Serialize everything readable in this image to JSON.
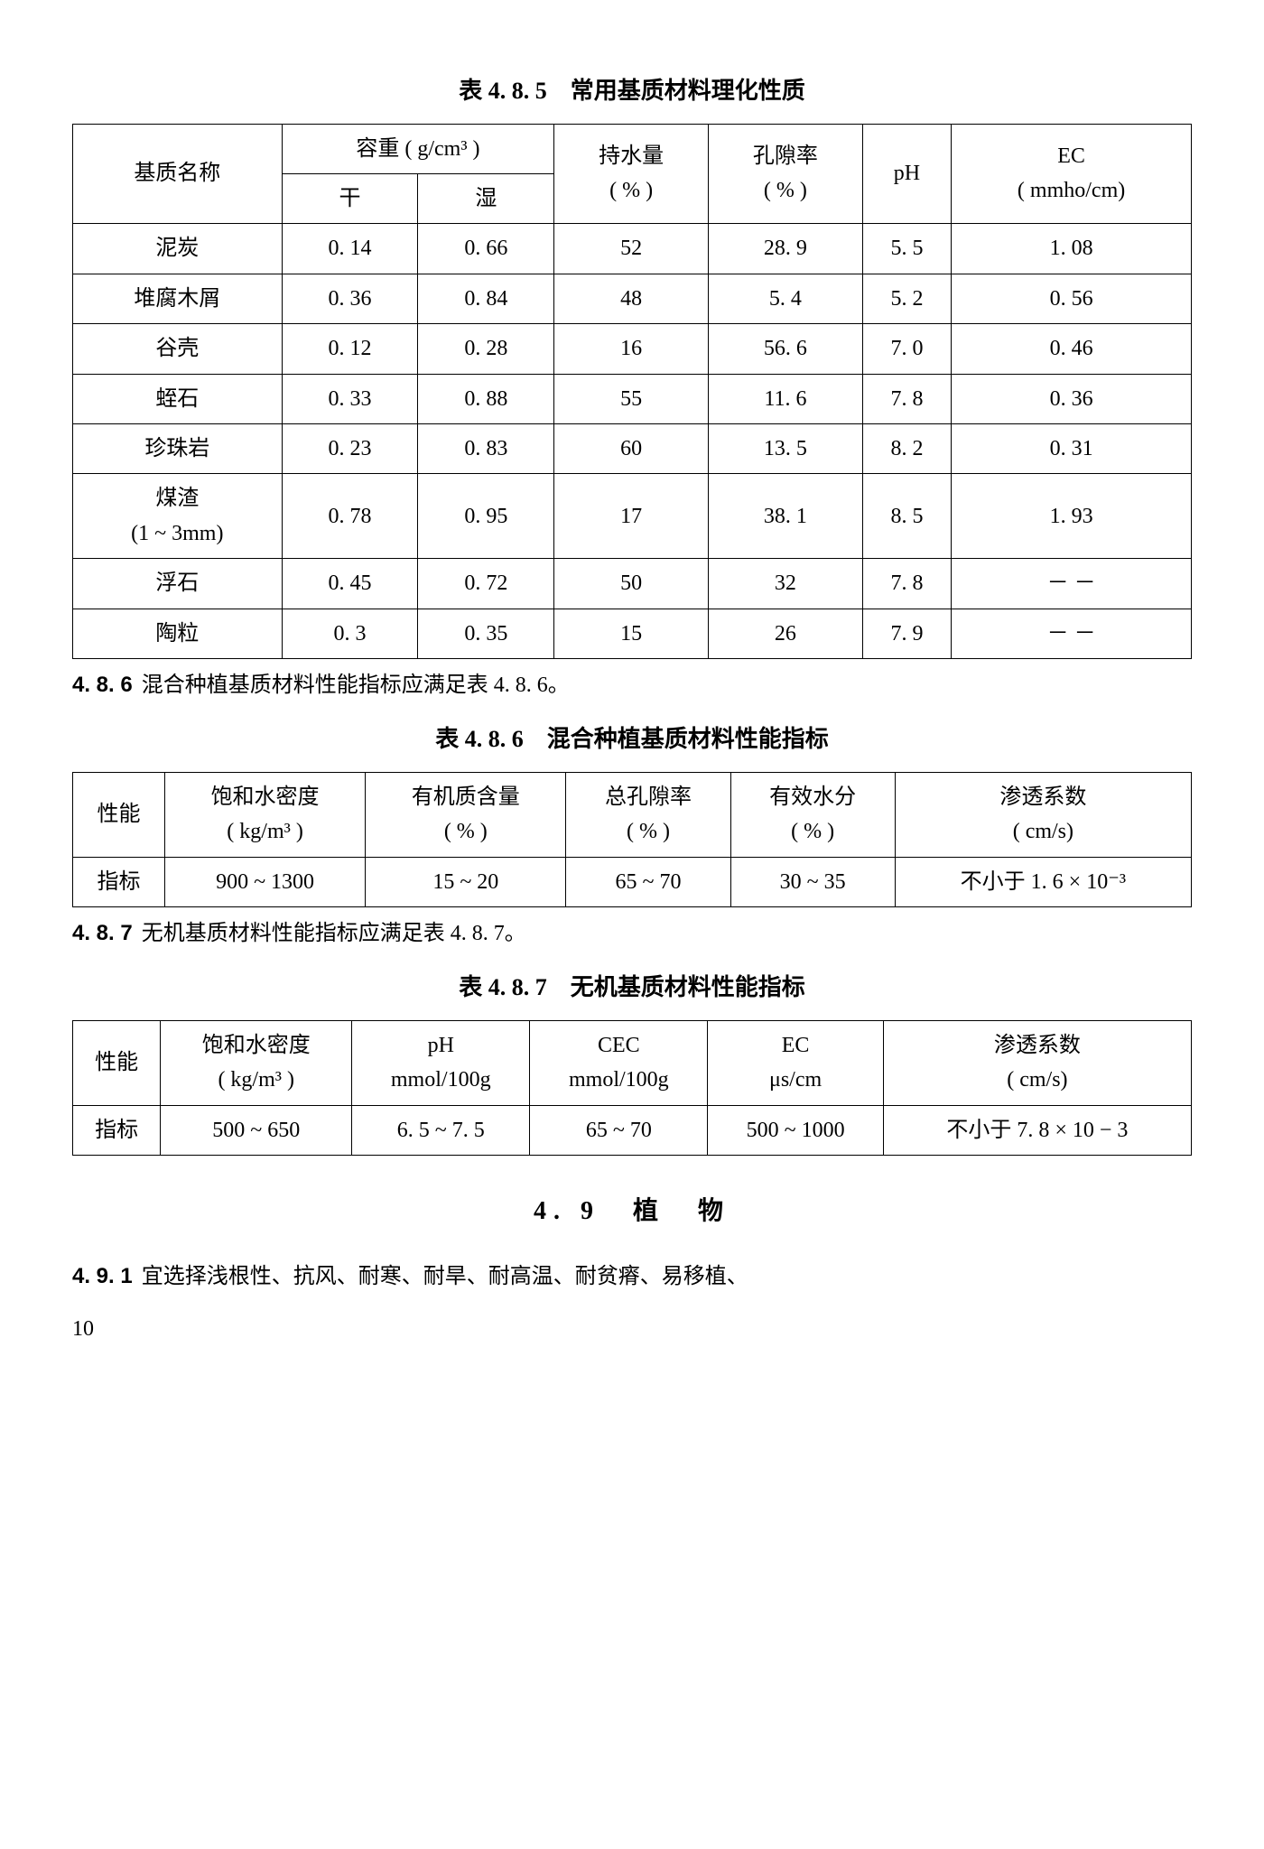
{
  "table485": {
    "caption": "表 4. 8. 5　常用基质材料理化性质",
    "headers": {
      "name": "基质名称",
      "density": "容重 ( g/cm³ )",
      "dry": "干",
      "wet": "湿",
      "water": "持水量\n( % )",
      "porosity": "孔隙率\n( % )",
      "ph": "pH",
      "ec": "EC\n( mmho/cm)"
    },
    "rows": [
      [
        "泥炭",
        "0. 14",
        "0. 66",
        "52",
        "28. 9",
        "5. 5",
        "1. 08"
      ],
      [
        "堆腐木屑",
        "0. 36",
        "0. 84",
        "48",
        "5. 4",
        "5. 2",
        "0. 56"
      ],
      [
        "谷壳",
        "0. 12",
        "0. 28",
        "16",
        "56. 6",
        "7. 0",
        "0. 46"
      ],
      [
        "蛭石",
        "0. 33",
        "0. 88",
        "55",
        "11. 6",
        "7. 8",
        "0. 36"
      ],
      [
        "珍珠岩",
        "0. 23",
        "0. 83",
        "60",
        "13. 5",
        "8. 2",
        "0. 31"
      ],
      [
        "煤渣\n(1 ~ 3mm)",
        "0. 78",
        "0. 95",
        "17",
        "38. 1",
        "8. 5",
        "1. 93"
      ],
      [
        "浮石",
        "0. 45",
        "0. 72",
        "50",
        "32",
        "7. 8",
        "－ －"
      ],
      [
        "陶粒",
        "0. 3",
        "0. 35",
        "15",
        "26",
        "7. 9",
        "－ －"
      ]
    ]
  },
  "para486": {
    "num": "4. 8. 6",
    "text": "混合种植基质材料性能指标应满足表 4. 8. 6。"
  },
  "table486": {
    "caption": "表 4. 8. 6　混合种植基质材料性能指标",
    "headers": [
      "性能",
      "饱和水密度\n( kg/m³ )",
      "有机质含量\n( % )",
      "总孔隙率\n( % )",
      "有效水分\n( % )",
      "渗透系数\n( cm/s)"
    ],
    "row": [
      "指标",
      "900 ~ 1300",
      "15 ~ 20",
      "65 ~ 70",
      "30 ~ 35",
      "不小于 1. 6 × 10⁻³"
    ]
  },
  "para487": {
    "num": "4. 8. 7",
    "text": "无机基质材料性能指标应满足表 4. 8. 7。"
  },
  "table487": {
    "caption": "表 4. 8. 7　无机基质材料性能指标",
    "headers": [
      "性能",
      "饱和水密度\n( kg/m³ )",
      "pH\nmmol/100g",
      "CEC\nmmol/100g",
      "EC\nμs/cm",
      "渗透系数\n( cm/s)"
    ],
    "row": [
      "指标",
      "500 ~ 650",
      "6. 5 ~ 7. 5",
      "65 ~ 70",
      "500 ~ 1000",
      "不小于 7. 8 × 10 − 3"
    ]
  },
  "section49": "4. 9　植　物",
  "para491": {
    "num": "4. 9. 1",
    "text": "宜选择浅根性、抗风、耐寒、耐旱、耐高温、耐贫瘠、易移植、"
  },
  "pageNumber": "10"
}
